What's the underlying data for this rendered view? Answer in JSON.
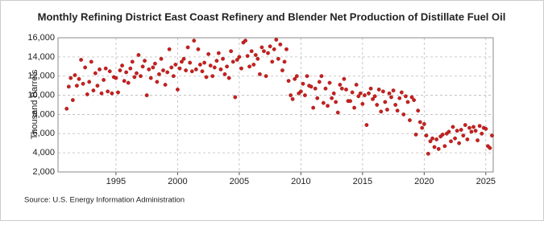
{
  "chart_data": {
    "type": "scatter",
    "title": "Monthly Refining District East Coast Refinery and Blender Net Production of Distillate Fuel Oil",
    "y_label": "Thousand Barrels",
    "source": "Source: U.S. Energy Information Administration",
    "color": "#c8201e",
    "grid": true,
    "xlim": [
      1990.3,
      2025.6
    ],
    "ylim": [
      2000,
      16000
    ],
    "xticks": [
      1995,
      2000,
      2005,
      2010,
      2015,
      2020,
      2025
    ],
    "yticks": [
      {
        "value": 2000,
        "label": "2,000"
      },
      {
        "value": 4000,
        "label": "4,000"
      },
      {
        "value": 6000,
        "label": "6,000"
      },
      {
        "value": 8000,
        "label": "8,000"
      },
      {
        "value": 10000,
        "label": "10,000"
      },
      {
        "value": 12000,
        "label": "12,000"
      },
      {
        "value": 14000,
        "label": "14,000"
      },
      {
        "value": 16000,
        "label": "16,000"
      }
    ],
    "x": [
      1991,
      1991.17,
      1991.33,
      1991.5,
      1991.67,
      1991.83,
      1992,
      1992.17,
      1992.33,
      1992.5,
      1992.67,
      1992.83,
      1993,
      1993.17,
      1993.33,
      1993.5,
      1993.67,
      1993.83,
      1994,
      1994.17,
      1994.33,
      1994.5,
      1994.67,
      1994.83,
      1995,
      1995.17,
      1995.33,
      1995.5,
      1995.67,
      1995.83,
      1996,
      1996.17,
      1996.33,
      1996.5,
      1996.67,
      1996.83,
      1997,
      1997.17,
      1997.33,
      1997.5,
      1997.67,
      1997.83,
      1998,
      1998.17,
      1998.33,
      1998.5,
      1998.67,
      1998.83,
      1999,
      1999.17,
      1999.33,
      1999.5,
      1999.67,
      1999.83,
      2000,
      2000.17,
      2000.33,
      2000.5,
      2000.67,
      2000.83,
      2001,
      2001.17,
      2001.33,
      2001.5,
      2001.67,
      2001.83,
      2002,
      2002.17,
      2002.33,
      2002.5,
      2002.67,
      2002.83,
      2003,
      2003.17,
      2003.33,
      2003.5,
      2003.67,
      2003.83,
      2004,
      2004.17,
      2004.33,
      2004.5,
      2004.67,
      2004.83,
      2005,
      2005.17,
      2005.33,
      2005.5,
      2005.67,
      2005.83,
      2006,
      2006.17,
      2006.33,
      2006.5,
      2006.67,
      2006.83,
      2007,
      2007.17,
      2007.33,
      2007.5,
      2007.67,
      2007.83,
      2008,
      2008.17,
      2008.33,
      2008.5,
      2008.67,
      2008.83,
      2009,
      2009.17,
      2009.33,
      2009.5,
      2009.67,
      2009.83,
      2010,
      2010.17,
      2010.33,
      2010.5,
      2010.67,
      2010.83,
      2011,
      2011.17,
      2011.33,
      2011.5,
      2011.67,
      2011.83,
      2012,
      2012.17,
      2012.33,
      2012.5,
      2012.67,
      2012.83,
      2013,
      2013.17,
      2013.33,
      2013.5,
      2013.67,
      2013.83,
      2014,
      2014.17,
      2014.33,
      2014.5,
      2014.67,
      2014.83,
      2015,
      2015.17,
      2015.33,
      2015.5,
      2015.67,
      2015.83,
      2016,
      2016.17,
      2016.33,
      2016.5,
      2016.67,
      2016.83,
      2017,
      2017.17,
      2017.33,
      2017.5,
      2017.67,
      2017.83,
      2018,
      2018.17,
      2018.33,
      2018.5,
      2018.67,
      2018.83,
      2019,
      2019.17,
      2019.33,
      2019.5,
      2019.67,
      2019.83,
      2020,
      2020.17,
      2020.33,
      2020.5,
      2020.67,
      2020.83,
      2021,
      2021.17,
      2021.33,
      2021.5,
      2021.67,
      2021.83,
      2022,
      2022.17,
      2022.33,
      2022.5,
      2022.67,
      2022.83,
      2023,
      2023.17,
      2023.33,
      2023.5,
      2023.67,
      2023.83,
      2024,
      2024.17,
      2024.33,
      2024.5,
      2024.67,
      2024.83,
      2025,
      2025.17,
      2025.33,
      2025.5
    ],
    "values": [
      8600,
      10900,
      11800,
      9500,
      12100,
      11000,
      11700,
      13700,
      11200,
      12900,
      10100,
      11400,
      13500,
      10500,
      12300,
      11000,
      12700,
      10200,
      11600,
      12800,
      10400,
      12500,
      10200,
      11900,
      11800,
      10300,
      12600,
      13100,
      11500,
      12400,
      11300,
      12800,
      13500,
      11900,
      12300,
      14200,
      12000,
      13000,
      13600,
      10000,
      12700,
      11800,
      12900,
      13300,
      11400,
      12200,
      13800,
      12600,
      11100,
      12400,
      14800,
      12900,
      12000,
      13200,
      10600,
      12800,
      13500,
      13800,
      12600,
      15000,
      13400,
      12500,
      15700,
      12700,
      14800,
      13200,
      12500,
      13400,
      11900,
      14300,
      13100,
      12000,
      12900,
      13600,
      14400,
      12700,
      13800,
      12200,
      13000,
      11800,
      14600,
      13500,
      9800,
      13700,
      14000,
      12800,
      15500,
      15700,
      14100,
      13000,
      14600,
      13200,
      14200,
      13800,
      12200,
      15000,
      14600,
      12000,
      14400,
      15100,
      13500,
      14800,
      15800,
      13800,
      15300,
      12600,
      13500,
      14800,
      11500,
      10000,
      9600,
      11700,
      12000,
      10200,
      10400,
      11200,
      10000,
      12000,
      11000,
      10900,
      8700,
      10700,
      9700,
      11400,
      12000,
      9200,
      10700,
      8900,
      11300,
      9700,
      10200,
      9300,
      8200,
      11100,
      10700,
      11700,
      10600,
      9400,
      9400,
      10300,
      8700,
      11100,
      9900,
      10200,
      9100,
      10000,
      6900,
      10200,
      10700,
      9600,
      9900,
      9000,
      10600,
      8300,
      10400,
      9300,
      8500,
      10200,
      9800,
      10500,
      9000,
      8400,
      9700,
      10300,
      8000,
      9900,
      9300,
      7400,
      9800,
      9500,
      5900,
      8400,
      7200,
      6600,
      7000,
      5800,
      3900,
      5200,
      5500,
      4600,
      5400,
      4400,
      5700,
      5900,
      4700,
      6000,
      6200,
      5200,
      6700,
      5500,
      6300,
      5000,
      6400,
      5800,
      6900,
      5400,
      6600,
      6200,
      6700,
      6300,
      5300,
      6800,
      6000,
      6600,
      6500,
      4700,
      4500,
      5800
    ]
  }
}
